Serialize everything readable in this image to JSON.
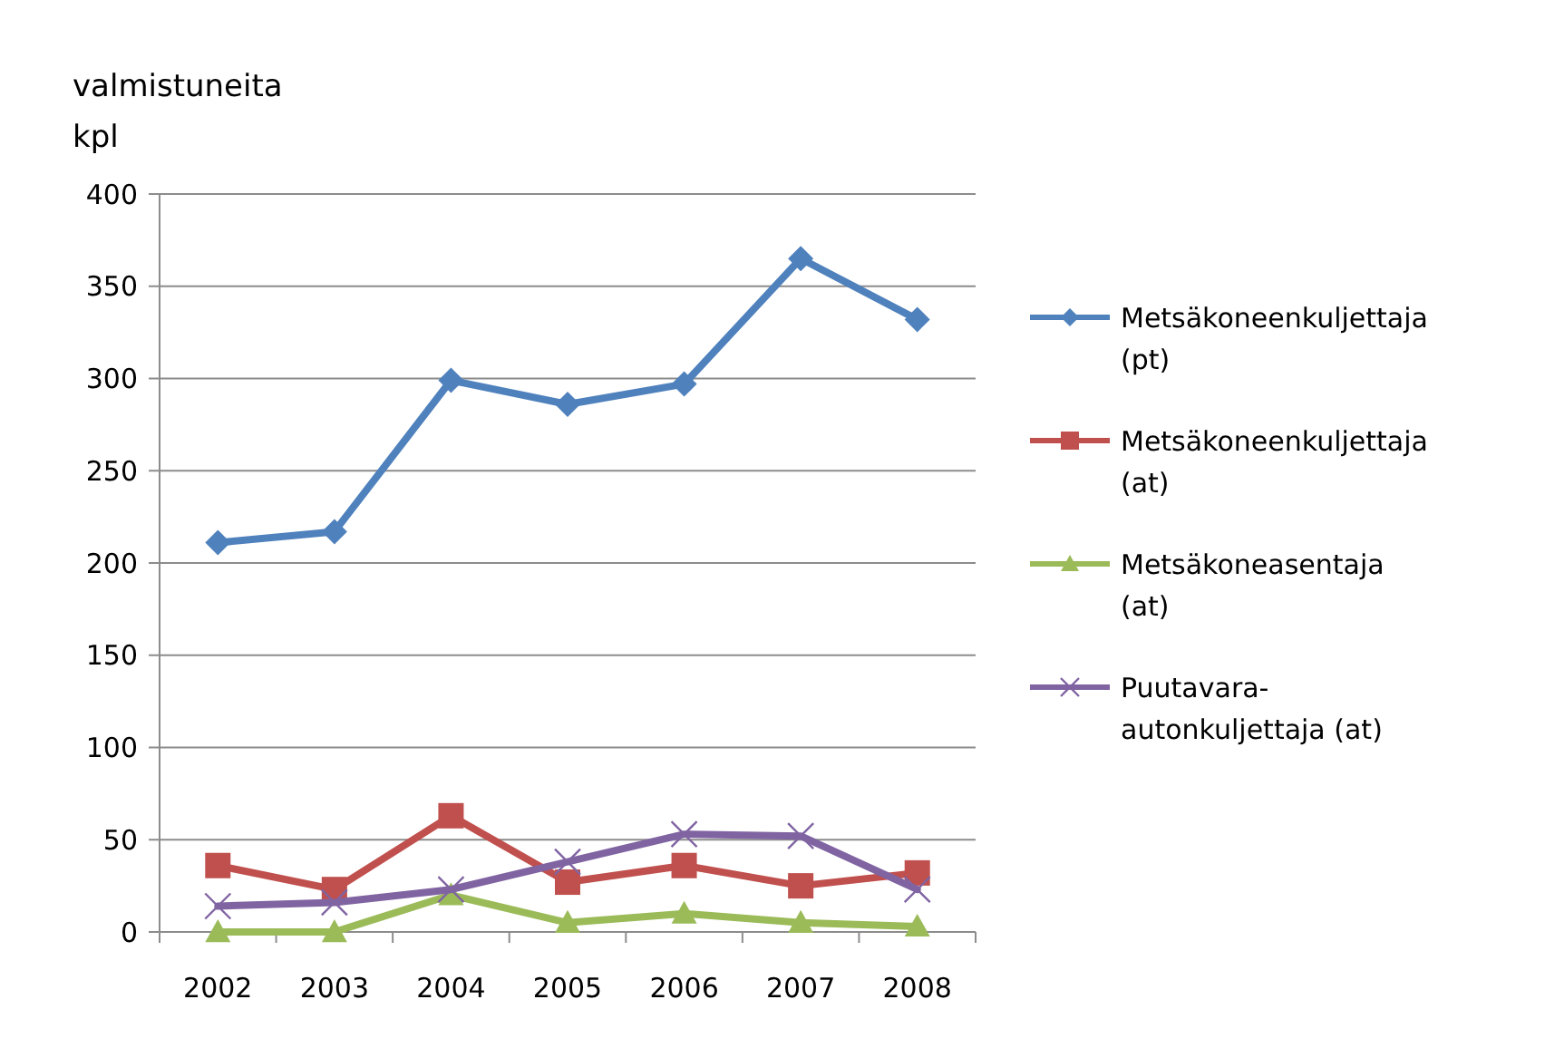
{
  "chart_data": {
    "type": "line",
    "ylabel": "valmistuneita\nkpl",
    "categories": [
      "2002",
      "2003",
      "2004",
      "2005",
      "2006",
      "2007",
      "2008"
    ],
    "series": [
      {
        "name": "Metsäkoneenkuljettaja (pt)",
        "color": "#4f81bd",
        "marker": "diamond",
        "values": [
          211,
          217,
          299,
          286,
          297,
          365,
          332
        ]
      },
      {
        "name": "Metsäkoneenkuljettaja (at)",
        "color": "#c0504d",
        "marker": "square",
        "values": [
          36,
          23,
          63,
          27,
          36,
          25,
          32
        ]
      },
      {
        "name": "Metsäkoneasentaja (at)",
        "color": "#9bbb59",
        "marker": "triangle",
        "values": [
          0,
          0,
          20,
          5,
          10,
          5,
          3
        ]
      },
      {
        "name": "Puutavara-autonkuljettaja (at)",
        "color": "#8064a2",
        "marker": "cross",
        "values": [
          14,
          16,
          23,
          38,
          53,
          52,
          23
        ]
      }
    ],
    "ylim": [
      0,
      400
    ],
    "yticks": [
      0,
      50,
      100,
      150,
      200,
      250,
      300,
      350,
      400
    ],
    "grid": "y",
    "legend": "right",
    "line_style": "solid"
  }
}
